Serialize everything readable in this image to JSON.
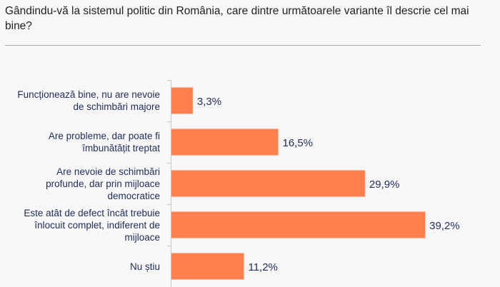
{
  "chart_data": {
    "type": "bar",
    "orientation": "horizontal",
    "title": "Gândindu-vă la sistemul politic din România, care dintre următoarele variante îl descrie cel mai bine?",
    "categories": [
      "Funcționează bine, nu are nevoie de schimbări majore",
      "Are probleme, dar poate fi îmbunătățit treptat",
      "Are nevoie de schimbări profunde, dar prin mijloace democratice",
      "Este atât de defect încât trebuie înlocuit complet, indiferent de mijloace",
      "Nu știu"
    ],
    "values": [
      3.3,
      16.5,
      29.9,
      39.2,
      11.2
    ],
    "data_labels": [
      "3,3%",
      "16,5%",
      "29,9%",
      "39,2%",
      "11,2%"
    ],
    "unit": "%",
    "xlim": [
      0,
      40
    ],
    "grid": false,
    "legend": "none",
    "bar_color": "#ff7f4f",
    "label_color": "#1f2d5a"
  }
}
